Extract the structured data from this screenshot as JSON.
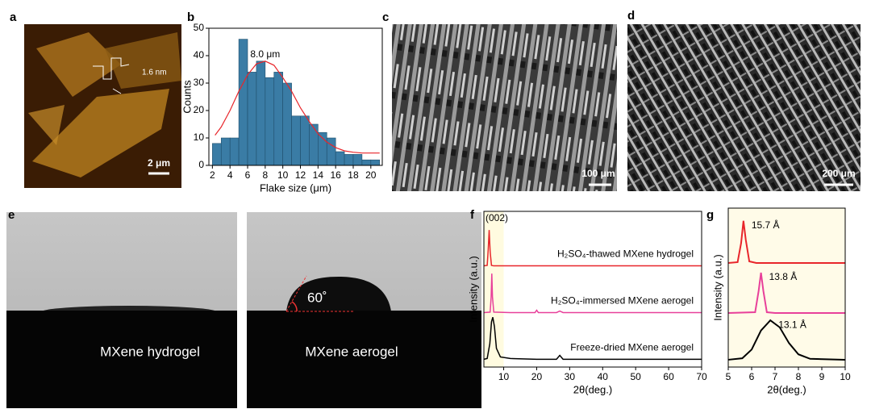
{
  "panels": {
    "a": {
      "label": "a",
      "annotation": "1.6 nm",
      "scale_bar": "2 μm"
    },
    "b": {
      "label": "b"
    },
    "c": {
      "label": "c",
      "scale_bar": "100 μm"
    },
    "d": {
      "label": "d",
      "scale_bar": "200 μm"
    },
    "e": {
      "label": "e",
      "left_caption": "MXene hydrogel",
      "right_caption": "MXene aerogel",
      "angle": "60˚"
    },
    "f": {
      "label": "f"
    },
    "g": {
      "label": "g"
    }
  },
  "chart_data": [
    {
      "type": "histogram",
      "xlabel": "Flake size (μm)",
      "ylabel": "Counts",
      "annotation": "8.0 μm",
      "bins": [
        2,
        3,
        4,
        5,
        6,
        7,
        8,
        9,
        10,
        11,
        12,
        13,
        14,
        15,
        16,
        17,
        18,
        19,
        20,
        21
      ],
      "counts": [
        8,
        10,
        10,
        46,
        34,
        38,
        32,
        34,
        30,
        18,
        18,
        15,
        12,
        10,
        5,
        4,
        4,
        2,
        2
      ],
      "color": "#3a7ca5",
      "fit": {
        "x": [
          2.3,
          3,
          4,
          5,
          6,
          7,
          8,
          9,
          10,
          11,
          12,
          13,
          14,
          15,
          16,
          17,
          18,
          19,
          20,
          21
        ],
        "values": [
          11,
          14,
          20,
          27,
          33,
          37,
          38,
          36.5,
          32,
          27,
          21,
          16,
          11.5,
          8.5,
          6.5,
          5.3,
          4.8,
          4.5,
          4.5,
          4.5
        ],
        "color": "#e8262b"
      },
      "xlim": [
        1.6,
        21.3
      ],
      "ylim": [
        0,
        50
      ],
      "xticks": [
        2,
        4,
        6,
        8,
        10,
        12,
        14,
        16,
        18,
        20
      ],
      "yticks": [
        0,
        10,
        20,
        30,
        40,
        50
      ]
    },
    {
      "type": "line",
      "xlabel": "2θ(deg.)",
      "ylabel": "Intensity (a.u.)",
      "annotation": "(002)",
      "xlim": [
        4,
        70
      ],
      "ylim": [
        0,
        100
      ],
      "xticks": [
        10,
        20,
        30,
        40,
        50,
        60,
        70
      ],
      "shade": [
        4,
        10
      ],
      "series": [
        {
          "name": "H₂SO₄-thawed MXene hydrogel",
          "color": "#e8262b",
          "x": [
            4,
            5,
            5.3,
            5.6,
            5.9,
            6.3,
            7,
            10,
            20,
            30,
            40,
            50,
            60,
            70
          ],
          "values": [
            65,
            65.3,
            75,
            88,
            74,
            65.3,
            65,
            65,
            65,
            65,
            65,
            65,
            65,
            65
          ]
        },
        {
          "name": "H₂SO₄-immersed MXene aerogel",
          "color": "#e8409a",
          "x": [
            4,
            5.9,
            6.2,
            6.4,
            6.6,
            7,
            12,
            19.5,
            20,
            20.5,
            26,
            27,
            28,
            70
          ],
          "values": [
            35,
            35.3,
            45,
            60,
            45,
            35.3,
            35,
            35,
            36.5,
            35,
            35,
            36,
            35,
            35
          ]
        },
        {
          "name": "Freeze-dried MXene aerogel",
          "color": "#000000",
          "x": [
            4,
            5,
            5.8,
            6.3,
            6.7,
            7.2,
            7.8,
            9,
            12,
            20,
            26,
            27,
            28,
            40,
            70
          ],
          "values": [
            5,
            5.5,
            15,
            29,
            32,
            26,
            12,
            6.5,
            5.5,
            5,
            5,
            7.5,
            5,
            5,
            5
          ]
        }
      ]
    },
    {
      "type": "line",
      "xlabel": "2θ(deg.)",
      "ylabel": "Intensity (a.u.)",
      "xlim": [
        5,
        10
      ],
      "ylim": [
        0,
        100
      ],
      "xticks": [
        5,
        6,
        7,
        8,
        9,
        10
      ],
      "background": "#fffbe8",
      "series": [
        {
          "name": "15.7 Å",
          "color": "#e8262b",
          "x": [
            5,
            5.4,
            5.55,
            5.65,
            5.75,
            5.9,
            6.2,
            10
          ],
          "values": [
            65.5,
            66,
            78,
            92,
            80,
            66.5,
            65.5,
            65.5
          ]
        },
        {
          "name": "13.8 Å",
          "color": "#e8409a",
          "x": [
            5,
            6.15,
            6.3,
            6.4,
            6.5,
            6.65,
            7,
            10
          ],
          "values": [
            34,
            34.5,
            48,
            59.4,
            48,
            34.5,
            34,
            34
          ]
        },
        {
          "name": "13.1 Å",
          "color": "#000000",
          "x": [
            5,
            5.6,
            6,
            6.4,
            6.8,
            7.2,
            7.6,
            8,
            8.5,
            10
          ],
          "values": [
            4.6,
            5.5,
            11,
            23,
            29.4,
            25,
            15,
            8,
            5.2,
            4.6
          ]
        }
      ]
    }
  ]
}
